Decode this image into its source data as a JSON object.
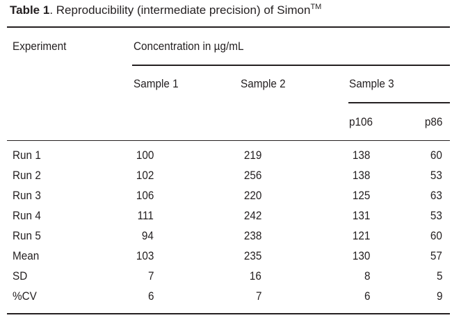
{
  "caption": {
    "label": "Table 1",
    "text": ". Reproducibility (intermediate precision) of Simon",
    "superscript": "TM"
  },
  "table": {
    "header": {
      "experiment": "Experiment",
      "concentration": "Concentration in µg/mL",
      "sample1": "Sample 1",
      "sample2": "Sample 2",
      "sample3": "Sample 3",
      "p106": "p106",
      "p86": "p86"
    },
    "rows": [
      {
        "label": "Run 1",
        "s1": "100",
        "s2": "219",
        "p106": "138",
        "p86": "60"
      },
      {
        "label": "Run 2",
        "s1": "102",
        "s2": "256",
        "p106": "138",
        "p86": "53"
      },
      {
        "label": "Run 3",
        "s1": "106",
        "s2": "220",
        "p106": "125",
        "p86": "63"
      },
      {
        "label": "Run 4",
        "s1": "111",
        "s2": "242",
        "p106": "131",
        "p86": "53"
      },
      {
        "label": "Run 5",
        "s1": "94",
        "s2": "238",
        "p106": "121",
        "p86": "60"
      },
      {
        "label": "Mean",
        "s1": "103",
        "s2": "235",
        "p106": "130",
        "p86": "57"
      },
      {
        "label": "SD",
        "s1": "7",
        "s2": "16",
        "p106": "8",
        "p86": "5"
      },
      {
        "label": "%CV",
        "s1": "6",
        "s2": "7",
        "p106": "6",
        "p86": "9"
      }
    ]
  }
}
